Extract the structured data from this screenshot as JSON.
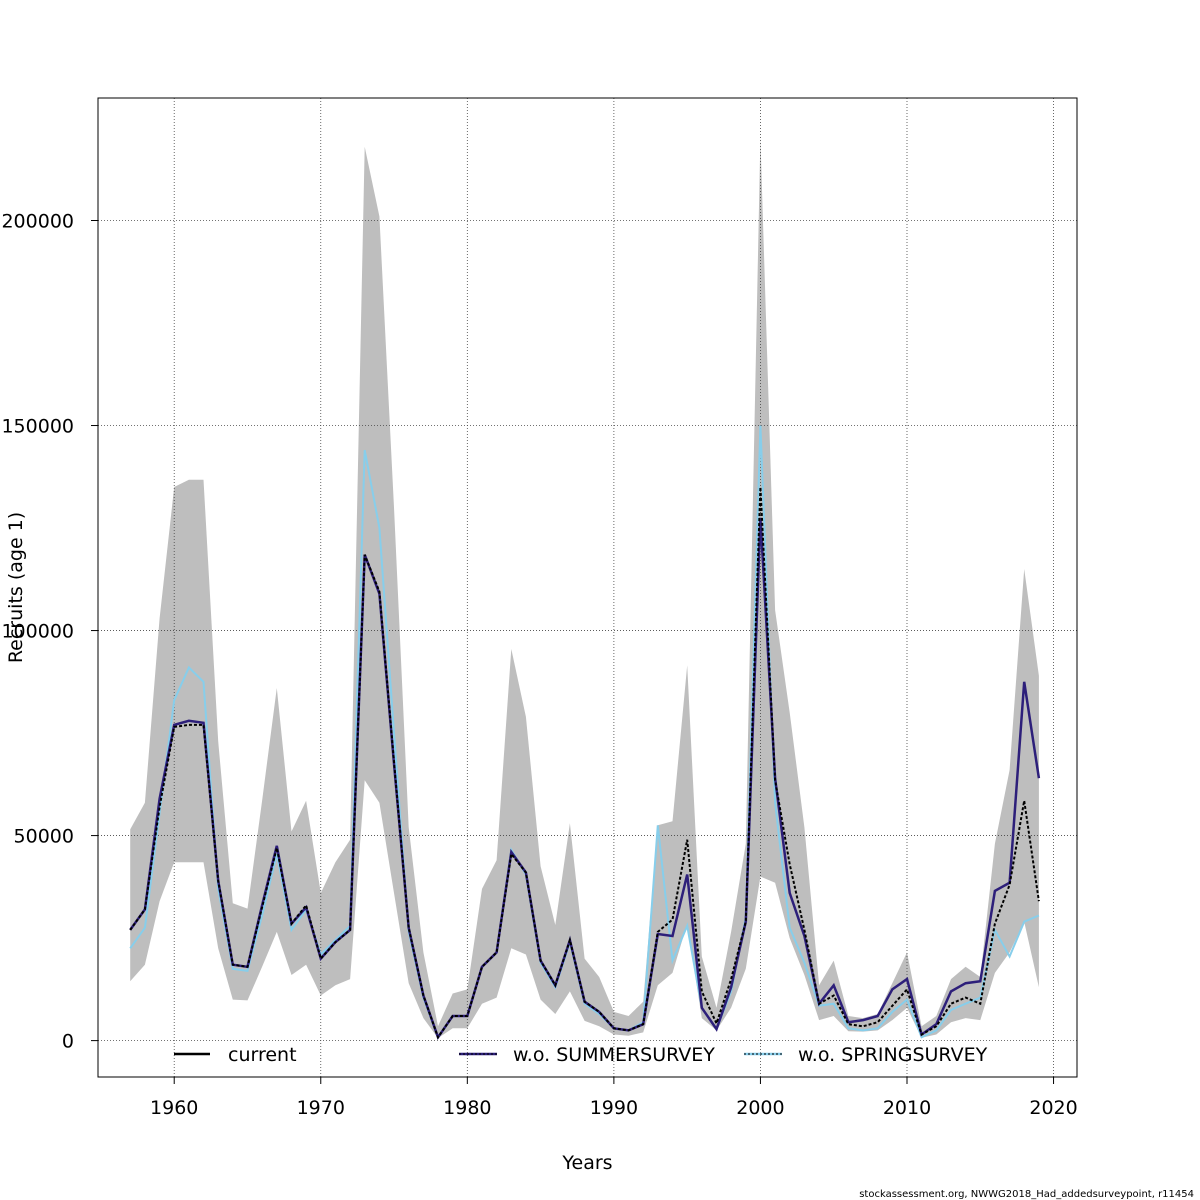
{
  "chart_data": {
    "type": "line",
    "title": "",
    "xlabel": "Years",
    "ylabel": "Recruits (age 1)",
    "xlim": [
      1954.8,
      2021.6
    ],
    "ylim": [
      -8875,
      229875
    ],
    "x_ticks": [
      1960,
      1970,
      1980,
      1990,
      2000,
      2010,
      2020
    ],
    "y_ticks": [
      0,
      50000,
      100000,
      150000,
      200000
    ],
    "grid": true,
    "legend_position": "bottom",
    "colors": {
      "band": "#bebebe",
      "current": "#000000",
      "summer": "#2d1f7a",
      "spring": "#87ceeb"
    },
    "years": [
      1957,
      1958,
      1959,
      1960,
      1961,
      1962,
      1963,
      1964,
      1965,
      1966,
      1967,
      1968,
      1969,
      1970,
      1971,
      1972,
      1973,
      1974,
      1975,
      1976,
      1977,
      1978,
      1979,
      1980,
      1981,
      1982,
      1983,
      1984,
      1985,
      1986,
      1987,
      1988,
      1989,
      1990,
      1991,
      1992,
      1993,
      1994,
      1995,
      1996,
      1997,
      1998,
      1999,
      2000,
      2001,
      2002,
      2003,
      2004,
      2005,
      2006,
      2007,
      2008,
      2009,
      2010,
      2011,
      2012,
      2013,
      2014,
      2015,
      2016,
      2017,
      2018,
      2019
    ],
    "band_upper": [
      51500,
      58000,
      103000,
      135000,
      136800,
      136800,
      73000,
      33500,
      32200,
      58500,
      86000,
      51000,
      58500,
      36000,
      43500,
      49000,
      218000,
      201000,
      130000,
      52000,
      21500,
      3500,
      11500,
      12500,
      37000,
      44000,
      95500,
      79000,
      42500,
      28200,
      53000,
      20000,
      15500,
      7000,
      6000,
      9500,
      52500,
      53500,
      91500,
      20500,
      8000,
      26500,
      48000,
      220000,
      105000,
      80000,
      52000,
      13500,
      19500,
      6000,
      5500,
      6500,
      14000,
      21500,
      3500,
      6000,
      15000,
      18000,
      15500,
      48000,
      66000,
      115000,
      89000
    ],
    "band_lower": [
      14500,
      18500,
      34000,
      43500,
      43500,
      43500,
      22500,
      10000,
      9800,
      18000,
      26500,
      16000,
      18500,
      11000,
      13500,
      15000,
      63500,
      58000,
      36000,
      14000,
      5500,
      600,
      3000,
      3000,
      9000,
      10500,
      22500,
      21000,
      10000,
      6500,
      12000,
      4800,
      3500,
      1500,
      1200,
      2000,
      13500,
      16500,
      28500,
      5500,
      2500,
      8000,
      17500,
      40000,
      38500,
      25000,
      16000,
      5000,
      6000,
      2300,
      2200,
      2500,
      5000,
      8000,
      700,
      1500,
      4500,
      5500,
      5000,
      16500,
      21500,
      29000,
      13000
    ],
    "series": [
      {
        "name": "current",
        "values": [
          27000,
          32000,
          57000,
          76500,
          77000,
          77000,
          39000,
          18500,
          18000,
          32500,
          47000,
          28500,
          33000,
          20000,
          24000,
          27000,
          118500,
          109500,
          68000,
          27500,
          11000,
          800,
          6000,
          6000,
          18000,
          21500,
          45500,
          41000,
          19500,
          13500,
          24500,
          9500,
          7000,
          3000,
          2500,
          4000,
          26500,
          29500,
          49000,
          12000,
          4200,
          15000,
          29000,
          135000,
          63500,
          43000,
          27000,
          9000,
          11000,
          4000,
          3500,
          4500,
          8500,
          12500,
          1500,
          3500,
          9000,
          10500,
          9000,
          28500,
          38000,
          58500,
          34000
        ]
      },
      {
        "name": "w.o. SUMMERSURVEY",
        "values": [
          27000,
          32000,
          59000,
          77000,
          78000,
          77500,
          39000,
          18500,
          18000,
          33000,
          47500,
          28500,
          32500,
          20000,
          24000,
          27000,
          118500,
          109000,
          67500,
          27500,
          11000,
          800,
          6000,
          6000,
          18000,
          21500,
          46000,
          41000,
          19500,
          13500,
          24500,
          9500,
          7000,
          3000,
          2500,
          4000,
          26000,
          25500,
          40500,
          8000,
          2800,
          13000,
          29000,
          127500,
          64000,
          36000,
          25500,
          9000,
          13500,
          4500,
          5000,
          6000,
          12500,
          15000,
          1500,
          4000,
          12000,
          14000,
          14500,
          36500,
          38500,
          87500,
          64000
        ]
      },
      {
        "name": "w.o. SPRINGSURVEY",
        "values": [
          22500,
          27500,
          55500,
          83000,
          91000,
          87500,
          37000,
          17500,
          17000,
          30500,
          45500,
          27000,
          32000,
          21000,
          24500,
          28000,
          144000,
          125000,
          75000,
          26500,
          10500,
          800,
          6000,
          6000,
          18000,
          21500,
          46500,
          40500,
          19000,
          13000,
          24000,
          9000,
          6500,
          3000,
          2500,
          4500,
          52500,
          19500,
          28000,
          8000,
          2800,
          12000,
          30000,
          150000,
          58000,
          27500,
          19000,
          8500,
          9000,
          3000,
          2500,
          3000,
          7000,
          10000,
          800,
          2500,
          7500,
          9000,
          10500,
          27000,
          20500,
          29000,
          30500
        ]
      }
    ]
  },
  "legend": {
    "items": [
      "current",
      "w.o. SUMMERSURVEY",
      "w.o. SPRINGSURVEY"
    ]
  },
  "footer": "stockassessment.org, NWWG2018_Had_addedsurveypoint, r11454"
}
